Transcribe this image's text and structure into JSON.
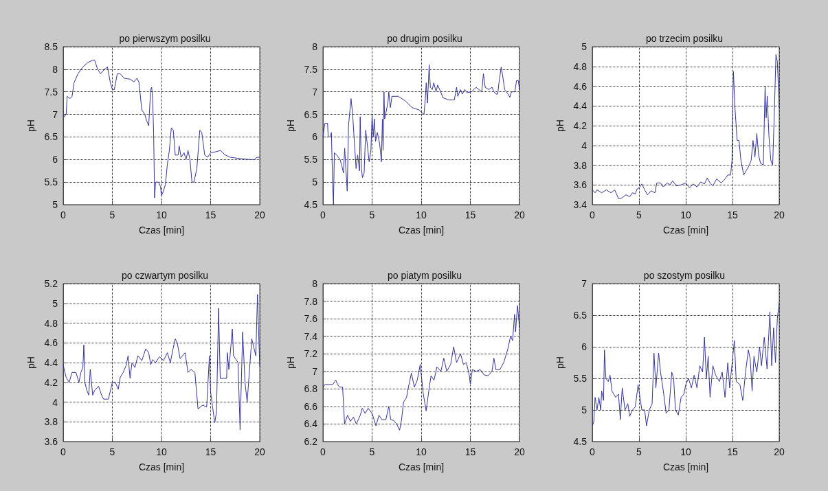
{
  "chart_data": [
    {
      "type": "line",
      "title": "po pierwszym posilku",
      "xlabel": "Czas [min]",
      "ylabel": "pH",
      "color": "#333399",
      "grid": true,
      "xlim": [
        0,
        20
      ],
      "xticks": [
        0,
        5,
        10,
        15,
        20
      ],
      "ylim": [
        5,
        8.5
      ],
      "yticks": [
        5,
        5.5,
        6,
        6.5,
        7,
        7.5,
        8,
        8.5
      ],
      "x": [
        0,
        0.1,
        0.3,
        0.4,
        0.7,
        0.9,
        1.1,
        1.5,
        2,
        2.5,
        3,
        3.2,
        3.5,
        3.8,
        4.2,
        4.5,
        4.8,
        5,
        5.2,
        5.5,
        5.8,
        6.2,
        6.8,
        7.2,
        7.5,
        7.7,
        8,
        8.3,
        8.5,
        8.7,
        8.9,
        9,
        9.1,
        9.2,
        9.3,
        9.4,
        9.7,
        9.9,
        10,
        10.2,
        10.4,
        10.6,
        10.8,
        11,
        11.2,
        11.4,
        11.7,
        11.8,
        12,
        12.3,
        12.5,
        12.7,
        12.9,
        13.1,
        13.3,
        13.6,
        13.9,
        14.1,
        14.4,
        14.7,
        15,
        15.5,
        16,
        16.5,
        17,
        18,
        19,
        19.5,
        19.7,
        20
      ],
      "values": [
        7,
        6.95,
        7,
        7.4,
        7.35,
        7.4,
        7.7,
        7.9,
        8.05,
        8.15,
        8.2,
        8.2,
        8,
        7.9,
        8,
        8.05,
        7.7,
        7.55,
        7.55,
        7.9,
        7.9,
        7.8,
        7.78,
        7.72,
        7.8,
        7.72,
        7.1,
        7,
        6.85,
        6.75,
        7.55,
        7.6,
        7.35,
        6.6,
        5.15,
        5.5,
        5.5,
        5.4,
        5.2,
        5.3,
        5.45,
        5.9,
        6.2,
        6.7,
        6.65,
        6.1,
        6.1,
        6.3,
        6.05,
        6.15,
        6,
        6.2,
        6,
        5.5,
        5.5,
        5.8,
        6.65,
        6.6,
        6.1,
        6.05,
        6.15,
        6.17,
        6.2,
        6.1,
        6.05,
        6.02,
        6,
        6,
        6.05,
        6.05
      ]
    },
    {
      "type": "line",
      "title": "po drugim posilku",
      "xlabel": "Czas [min]",
      "ylabel": "pH",
      "color": "#333399",
      "grid": true,
      "xlim": [
        0,
        20
      ],
      "xticks": [
        0,
        5,
        10,
        15,
        20
      ],
      "ylim": [
        4.5,
        8
      ],
      "yticks": [
        4.5,
        5,
        5.5,
        6,
        6.5,
        7,
        7.5,
        8
      ],
      "x": [
        0,
        0.19,
        0.47,
        0.53,
        0.77,
        0.86,
        0.98,
        1.07,
        1.16,
        1.4,
        1.74,
        1.93,
        2.09,
        2.21,
        2.47,
        2.6,
        2.86,
        3.02,
        3.37,
        3.53,
        3.72,
        3.79,
        3.91,
        4.02,
        4.19,
        4.35,
        4.53,
        4.7,
        4.88,
        5,
        5.12,
        5.23,
        5.35,
        5.53,
        5.77,
        5.95,
        6.05,
        6.12,
        6.21,
        6.28,
        6.47,
        6.63,
        6.7,
        6.86,
        7.02,
        7.67,
        8.37,
        9.07,
        9.77,
        10.28,
        10.42,
        10.51,
        10.63,
        10.7,
        10.81,
        10.93,
        11.12,
        11.28,
        11.51,
        11.67,
        11.98,
        12.21,
        12.79,
        13.37,
        13.6,
        13.72,
        14,
        14.19,
        14.42,
        14.65,
        15.12,
        15.58,
        16.16,
        16.33,
        16.51,
        16.86,
        17.21,
        17.4,
        17.63,
        17.79,
        17.91,
        18.14,
        18.26,
        18.49,
        18.84,
        19.02,
        19.19,
        19.53,
        19.7,
        19.88,
        20
      ],
      "values": [
        6,
        6.3,
        6.3,
        6,
        6,
        6.1,
        5,
        4.5,
        5.65,
        5.6,
        5.5,
        5.35,
        5.2,
        5.75,
        4.8,
        6.25,
        6.85,
        6.5,
        5.3,
        5.6,
        5.25,
        6.45,
        5.3,
        5.1,
        5.2,
        6.15,
        5.8,
        5.45,
        5.7,
        6.5,
        6,
        6.4,
        5.9,
        6.1,
        5.85,
        5.45,
        6.4,
        5.7,
        7,
        6.4,
        6.6,
        6.8,
        7,
        6.65,
        6.9,
        6.9,
        6.8,
        6.65,
        6.6,
        6.5,
        6.85,
        7.2,
        6.75,
        7.05,
        7.6,
        7.1,
        7.05,
        7.2,
        7,
        7.15,
        7,
        6.87,
        6.82,
        6.82,
        7.1,
        6.9,
        7.05,
        6.95,
        7.05,
        6.98,
        7,
        7.1,
        7,
        7.4,
        7.1,
        7.05,
        7.1,
        7,
        6.95,
        6.95,
        7.2,
        7.55,
        7.4,
        7.05,
        6.95,
        6.88,
        7,
        7,
        7.25,
        7.25,
        7.05
      ]
    },
    {
      "type": "line",
      "title": "po trzecim posilku",
      "xlabel": "Czas [min]",
      "ylabel": "pH",
      "color": "#333399",
      "grid": true,
      "xlim": [
        0,
        20
      ],
      "xticks": [
        0,
        5,
        10,
        15,
        20
      ],
      "ylim": [
        3.4,
        5
      ],
      "yticks": [
        3.4,
        3.6,
        3.8,
        4,
        4.2,
        4.4,
        4.6,
        4.8,
        5
      ],
      "x": [
        0,
        0.3,
        0.5,
        1,
        1.5,
        2,
        2.4,
        2.8,
        3.2,
        3.6,
        4,
        4.3,
        4.6,
        4.8,
        5,
        5.3,
        5.6,
        5.9,
        6.3,
        6.7,
        6.9,
        7.3,
        7.6,
        8,
        8.3,
        8.6,
        9,
        9.5,
        10,
        10.4,
        10.8,
        11.2,
        11.6,
        12,
        12.3,
        12.6,
        12.9,
        13.3,
        13.8,
        14.2,
        14.5,
        14.8,
        14.95,
        15,
        15.1,
        15.25,
        15.5,
        15.7,
        15.9,
        16.2,
        16.5,
        16.8,
        17,
        17.2,
        17.4,
        17.6,
        17.8,
        18,
        18.3,
        18.49,
        18.6,
        18.72,
        18.9,
        19.1,
        19.3,
        19.5,
        19.65,
        19.8,
        20
      ],
      "values": [
        3.55,
        3.52,
        3.55,
        3.52,
        3.55,
        3.52,
        3.55,
        3.46,
        3.47,
        3.5,
        3.48,
        3.52,
        3.51,
        3.56,
        3.57,
        3.61,
        3.55,
        3.5,
        3.54,
        3.52,
        3.62,
        3.62,
        3.58,
        3.62,
        3.6,
        3.64,
        3.59,
        3.6,
        3.62,
        3.57,
        3.61,
        3.58,
        3.63,
        3.61,
        3.67,
        3.62,
        3.59,
        3.66,
        3.62,
        3.66,
        3.7,
        3.7,
        3.85,
        4.3,
        4.75,
        4.4,
        4.05,
        4.05,
        3.85,
        3.7,
        3.75,
        3.8,
        3.85,
        4.05,
        3.88,
        4.12,
        3.9,
        3.82,
        3.8,
        4.6,
        4.28,
        4.5,
        4.1,
        3.85,
        3.8,
        4.4,
        4.92,
        4.85,
        4.38
      ]
    },
    {
      "type": "line",
      "title": "po czwartym posilku",
      "xlabel": "Czas [min]",
      "ylabel": "pH",
      "color": "#333399",
      "grid": true,
      "xlim": [
        0,
        20
      ],
      "xticks": [
        0,
        5,
        10,
        15,
        20
      ],
      "ylim": [
        3.6,
        5.2
      ],
      "yticks": [
        3.6,
        3.8,
        4,
        4.2,
        4.4,
        4.6,
        4.8,
        5,
        5.2
      ],
      "x": [
        0,
        0.3,
        0.6,
        0.9,
        1.3,
        1.6,
        1.8,
        2,
        2.1,
        2.2,
        2.4,
        2.6,
        2.75,
        3,
        3.2,
        3.6,
        3.9,
        4.1,
        4.6,
        5,
        5.3,
        5.6,
        5.8,
        6.1,
        6.4,
        6.6,
        6.8,
        7,
        7.3,
        7.6,
        8,
        8.4,
        8.7,
        8.9,
        9.1,
        9.4,
        9.8,
        10.2,
        10.6,
        10.9,
        11.2,
        11.4,
        11.6,
        11.9,
        12.4,
        12.7,
        13,
        13.4,
        13.72,
        14.2,
        14.6,
        14.88,
        15,
        15.2,
        15.42,
        15.6,
        15.81,
        15.98,
        16.63,
        16.7,
        16.86,
        17.21,
        17.33,
        17.79,
        18,
        18.26,
        18.5,
        18.72,
        19.19,
        19.6,
        19.77,
        20
      ],
      "values": [
        4.37,
        4.25,
        4.2,
        4.3,
        4.3,
        4.2,
        4.3,
        4.35,
        4.58,
        4.2,
        4.12,
        4.07,
        4.33,
        4.07,
        4.12,
        4.16,
        4.07,
        4.03,
        4.03,
        4.2,
        4.2,
        4.13,
        4.25,
        4.3,
        4.37,
        4.47,
        4.24,
        4.4,
        4.35,
        4.47,
        4.42,
        4.54,
        4.5,
        4.38,
        4.43,
        4.4,
        4.46,
        4.42,
        4.5,
        4.4,
        4.55,
        4.64,
        4.6,
        4.44,
        4.5,
        4.3,
        4.33,
        4.3,
        3.93,
        3.97,
        3.95,
        4.47,
        4.1,
        3.95,
        3.79,
        3.9,
        4.95,
        4.24,
        4.24,
        4.5,
        4.33,
        4.74,
        4.47,
        4.4,
        3.72,
        4.71,
        4.2,
        4,
        4.64,
        4.47,
        5.09,
        4.36
      ]
    },
    {
      "type": "line",
      "title": "po piatym posilku",
      "xlabel": "Czas [min]",
      "ylabel": "pH",
      "color": "#333399",
      "grid": true,
      "xlim": [
        0,
        20
      ],
      "xticks": [
        0,
        5,
        10,
        15,
        20
      ],
      "ylim": [
        6.2,
        8
      ],
      "yticks": [
        6.2,
        6.4,
        6.6,
        6.8,
        7,
        7.2,
        7.4,
        7.6,
        7.8,
        8
      ],
      "x": [
        0,
        0.2,
        0.6,
        1,
        1.3,
        1.5,
        1.7,
        2,
        2.2,
        2.5,
        2.8,
        3.1,
        3.4,
        3.8,
        4,
        4.3,
        4.6,
        5,
        5.2,
        5.4,
        5.7,
        6,
        6.4,
        6.7,
        6.9,
        7.2,
        7.5,
        7.8,
        8,
        8.2,
        8.5,
        8.7,
        9,
        9.3,
        9.6,
        9.9,
        10.2,
        10.5,
        10.8,
        11,
        11.3,
        11.6,
        12,
        12.3,
        12.6,
        13,
        13.3,
        13.6,
        14,
        14.3,
        14.6,
        14.9,
        15,
        15.2,
        15.6,
        16,
        16.4,
        16.8,
        17.2,
        17.4,
        17.6,
        18,
        18.4,
        18.8,
        19.1,
        19.3,
        19.5,
        19.6,
        19.8,
        20
      ],
      "values": [
        6.82,
        6.85,
        6.85,
        6.85,
        6.9,
        6.85,
        6.82,
        6.82,
        6.4,
        6.5,
        6.43,
        6.48,
        6.4,
        6.5,
        6.58,
        6.52,
        6.58,
        6.52,
        6.45,
        6.38,
        6.5,
        6.45,
        6.45,
        6.6,
        6.45,
        6.44,
        6.4,
        6.33,
        6.45,
        6.65,
        6.7,
        6.82,
        6.98,
        6.82,
        6.9,
        7.08,
        6.75,
        6.55,
        6.8,
        6.95,
        6.9,
        7.05,
        7,
        7.15,
        7,
        7.08,
        7.28,
        7.1,
        7.2,
        7.08,
        7.1,
        6.95,
        6.85,
        7.02,
        7,
        7.02,
        6.96,
        6.95,
        7,
        7.15,
        7.02,
        7.02,
        7.1,
        7.25,
        7.4,
        7.35,
        7.65,
        7.45,
        7.75,
        7.5
      ]
    },
    {
      "type": "line",
      "title": "po szostym posilku",
      "xlabel": "Czas [min]",
      "ylabel": "pH",
      "color": "#333399",
      "grid": true,
      "xlim": [
        0,
        20
      ],
      "xticks": [
        0,
        5,
        10,
        15,
        20
      ],
      "ylim": [
        4.5,
        7
      ],
      "yticks": [
        4.5,
        5,
        5.5,
        6,
        6.5,
        7
      ],
      "x": [
        0,
        0.15,
        0.3,
        0.5,
        0.7,
        0.9,
        1,
        1.2,
        1.3,
        1.45,
        1.7,
        1.9,
        2.1,
        2.5,
        2.8,
        3,
        3.2,
        3.5,
        3.8,
        4,
        4.3,
        4.6,
        4.9,
        5.1,
        5.3,
        5.6,
        5.8,
        6.1,
        6.4,
        6.6,
        6.8,
        7.1,
        7.3,
        7.6,
        7.9,
        8.2,
        8.5,
        8.7,
        8.9,
        9.2,
        9.5,
        9.8,
        10,
        10.3,
        10.6,
        10.9,
        11.2,
        11.5,
        11.8,
        12,
        12.2,
        12.4,
        12.6,
        12.9,
        13.2,
        13.6,
        13.9,
        14.2,
        14.5,
        14.7,
        15,
        15.2,
        15.4,
        15.8,
        16.1,
        16.4,
        16.7,
        16.9,
        17.1,
        17.3,
        17.6,
        17.9,
        18.1,
        18.4,
        18.7,
        19,
        19.2,
        19.4,
        19.6,
        19.8,
        20
      ],
      "values": [
        4.75,
        4.8,
        5.2,
        5,
        5.2,
        5,
        5.3,
        5.15,
        5.95,
        5.5,
        5.45,
        5.55,
        5.3,
        5.2,
        5.25,
        4.85,
        5.35,
        5,
        5.1,
        4.9,
        5,
        5.05,
        5.4,
        5.2,
        5,
        5,
        4.75,
        5,
        5.1,
        5.9,
        5.35,
        5.9,
        5.6,
        5.3,
        4.95,
        5,
        5.6,
        5.5,
        5,
        4.92,
        5.2,
        5.25,
        5.4,
        5.5,
        5.35,
        5.55,
        5.35,
        5.7,
        5.6,
        6.15,
        5.5,
        5.85,
        5.2,
        5.7,
        5.55,
        5.45,
        5.6,
        5.2,
        5.75,
        5.35,
        5.8,
        6.1,
        5.45,
        5.4,
        5.15,
        5.6,
        5.95,
        5.8,
        5.3,
        5.85,
        5.6,
        6,
        5.7,
        6.15,
        5.65,
        6.55,
        5.7,
        6.3,
        5.75,
        6.45,
        6.7
      ]
    }
  ]
}
